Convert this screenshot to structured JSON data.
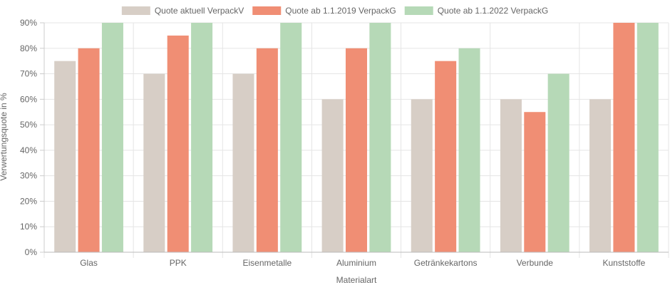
{
  "chart_data": {
    "type": "bar",
    "categories": [
      "Glas",
      "PPK",
      "Eisenmetalle",
      "Aluminium",
      "Getränkekartons",
      "Verbunde",
      "Kunststoffe"
    ],
    "series": [
      {
        "name": "Quote aktuell VerpackV",
        "color": "#d7cec6",
        "values": [
          75,
          70,
          70,
          60,
          60,
          60,
          60
        ]
      },
      {
        "name": "Quote ab 1.1.2019 VerpackG",
        "color": "#f08e74",
        "values": [
          80,
          85,
          80,
          80,
          75,
          55,
          90
        ]
      },
      {
        "name": "Quote ab 1.1.2022 VerpackG",
        "color": "#b6d9b7",
        "values": [
          90,
          90,
          90,
          90,
          80,
          70,
          90
        ]
      }
    ],
    "xlabel": "Materialart",
    "ylabel": "Verwertungsquote in %",
    "ylim": [
      0,
      90
    ],
    "ytick_step": 10,
    "ytick_suffix": "%",
    "grid": true,
    "legend_position": "top-center"
  }
}
